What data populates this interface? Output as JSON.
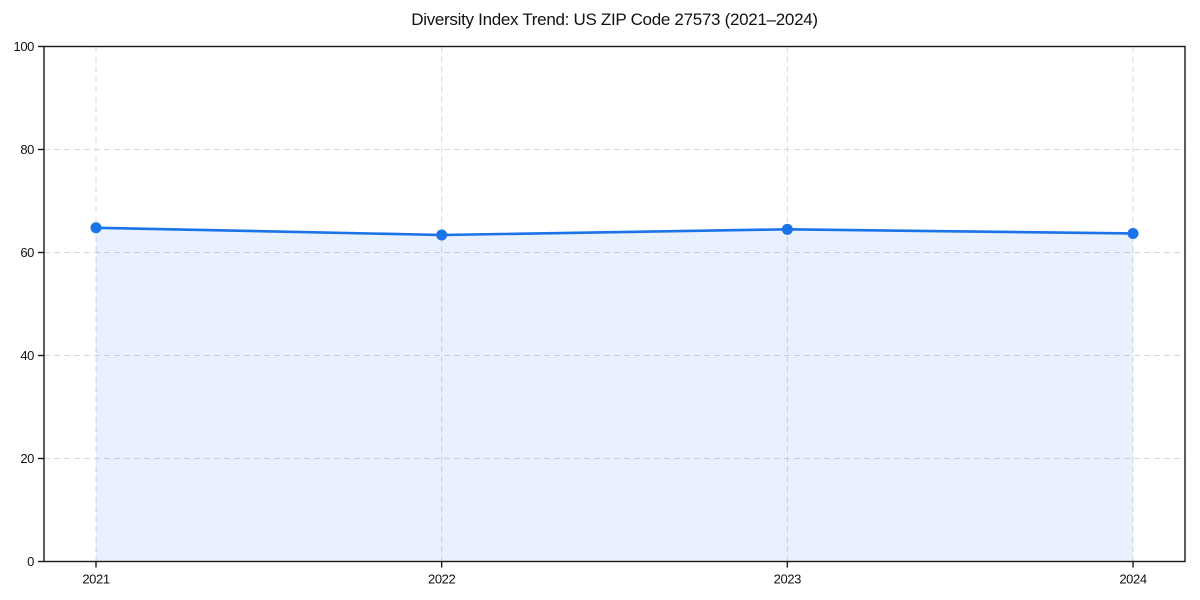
{
  "chart_data": {
    "type": "area",
    "title": "Diversity Index Trend: US ZIP Code 27573 (2021–2024)",
    "x": [
      "2021",
      "2022",
      "2023",
      "2024"
    ],
    "series": [
      {
        "name": "Diversity Index",
        "values": [
          64.8,
          63.4,
          64.5,
          63.7
        ]
      }
    ],
    "xlabel": "",
    "ylabel": "",
    "ylim": [
      0,
      100
    ],
    "yticks": [
      0,
      20,
      40,
      60,
      80,
      100
    ],
    "grid": true,
    "grid_style": "dashed",
    "legend_position": "none",
    "line_color": "#1a73e8",
    "marker_color": "#1a73e8",
    "fill_color": "#1a73e8",
    "fill_opacity": 0.1,
    "grid_color": "#d9d9d9",
    "spine_color": "#1a1a1a",
    "text_color": "#111111"
  }
}
